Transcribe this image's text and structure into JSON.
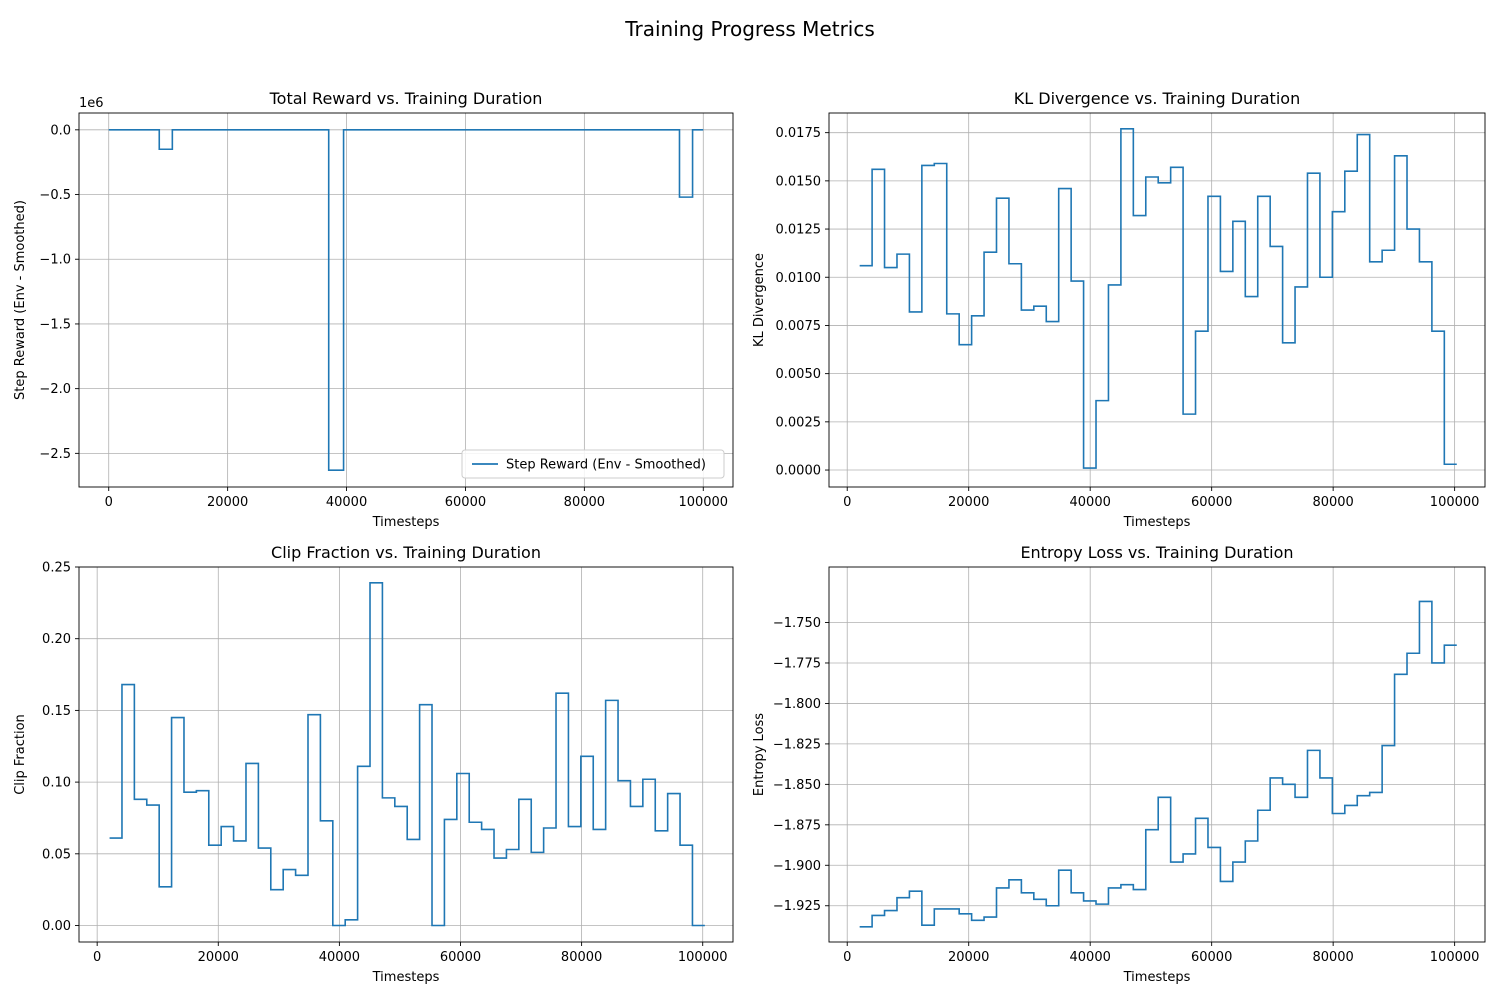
{
  "figure": {
    "title": "Training Progress Metrics"
  },
  "colors": {
    "line": "#1f77b4",
    "grid": "#b0b0b0",
    "axis": "#000000",
    "legend_border": "#cccccc"
  },
  "chart_data": [
    {
      "type": "line",
      "title": "Total Reward vs. Training Duration",
      "xlabel": "Timesteps",
      "ylabel": "Step Reward (Env - Smoothed)",
      "offset_text": "1e6",
      "xlim": [
        -5000,
        105000
      ],
      "ylim": [
        -2.76,
        0.13
      ],
      "xticks": [
        0,
        20000,
        40000,
        60000,
        80000,
        100000
      ],
      "yticks": [
        0.0,
        -0.5,
        -1.0,
        -1.5,
        -2.0,
        -2.5
      ],
      "ytick_labels": [
        "0.0",
        "−0.5",
        "−1.0",
        "−1.5",
        "−2.0",
        "−2.5"
      ],
      "grid": true,
      "legend": {
        "position": "lower-right",
        "entries": [
          "Step Reward (Env - Smoothed)"
        ]
      },
      "series": [
        {
          "name": "Step Reward (Env - Smoothed)",
          "x": [
            0,
            8500,
            8500,
            10700,
            10700,
            37000,
            37000,
            39500,
            39500,
            96000,
            96000,
            98200,
            98200,
            100000
          ],
          "y": [
            0,
            0,
            -0.15,
            -0.15,
            0,
            0,
            -2.63,
            -2.63,
            0,
            0,
            -0.52,
            -0.52,
            0,
            0
          ]
        }
      ]
    },
    {
      "type": "line",
      "title": "KL Divergence vs. Training Duration",
      "xlabel": "Timesteps",
      "ylabel": "KL Divergence",
      "xlim": [
        -3000,
        105000
      ],
      "ylim": [
        -0.00088,
        0.01852
      ],
      "xticks": [
        0,
        20000,
        40000,
        60000,
        80000,
        100000
      ],
      "yticks": [
        0.0,
        0.0025,
        0.005,
        0.0075,
        0.01,
        0.0125,
        0.015,
        0.0175
      ],
      "ytick_labels": [
        "0.0000",
        "0.0025",
        "0.0050",
        "0.0075",
        "0.0100",
        "0.0125",
        "0.0150",
        "0.0175"
      ],
      "grid": true,
      "series": [
        {
          "name": "",
          "step": true,
          "x": [
            2048,
            4096,
            6144,
            8192,
            10240,
            12288,
            14336,
            16384,
            18432,
            20480,
            22528,
            24576,
            26624,
            28672,
            30720,
            32768,
            34816,
            36864,
            38912,
            40960,
            43008,
            45056,
            47104,
            49152,
            51200,
            53248,
            55296,
            57344,
            59392,
            61440,
            63488,
            65536,
            67584,
            69632,
            71680,
            73728,
            75776,
            77824,
            79872,
            81920,
            83968,
            86016,
            88064,
            90112,
            92160,
            94208,
            96256,
            98304,
            100352
          ],
          "y": [
            0.0106,
            0.0156,
            0.0105,
            0.0112,
            0.0082,
            0.0158,
            0.0159,
            0.0081,
            0.0065,
            0.008,
            0.0113,
            0.0141,
            0.0107,
            0.0083,
            0.0085,
            0.0077,
            0.0146,
            0.0098,
            0.0001,
            0.0036,
            0.0096,
            0.0177,
            0.0132,
            0.0152,
            0.0149,
            0.0157,
            0.0029,
            0.0072,
            0.0142,
            0.0103,
            0.0129,
            0.009,
            0.0142,
            0.0116,
            0.0066,
            0.0095,
            0.0154,
            0.01,
            0.0134,
            0.0155,
            0.0174,
            0.0108,
            0.0114,
            0.0163,
            0.0125,
            0.0108,
            0.0072,
            0.0003,
            0.0003
          ]
        }
      ]
    },
    {
      "type": "line",
      "title": "Clip Fraction vs. Training Duration",
      "xlabel": "Timesteps",
      "ylabel": "Clip Fraction",
      "xlim": [
        -3000,
        105000
      ],
      "ylim": [
        -0.0115,
        0.25
      ],
      "xticks": [
        0,
        20000,
        40000,
        60000,
        80000,
        100000
      ],
      "yticks": [
        0.0,
        0.05,
        0.1,
        0.15,
        0.2,
        0.25
      ],
      "ytick_labels": [
        "0.00",
        "0.05",
        "0.10",
        "0.15",
        "0.20",
        "0.25"
      ],
      "grid": true,
      "series": [
        {
          "name": "",
          "step": true,
          "x": [
            2048,
            4096,
            6144,
            8192,
            10240,
            12288,
            14336,
            16384,
            18432,
            20480,
            22528,
            24576,
            26624,
            28672,
            30720,
            32768,
            34816,
            36864,
            38912,
            40960,
            43008,
            45056,
            47104,
            49152,
            51200,
            53248,
            55296,
            57344,
            59392,
            61440,
            63488,
            65536,
            67584,
            69632,
            71680,
            73728,
            75776,
            77824,
            79872,
            81920,
            83968,
            86016,
            88064,
            90112,
            92160,
            94208,
            96256,
            98304,
            100352
          ],
          "y": [
            0.061,
            0.168,
            0.088,
            0.084,
            0.027,
            0.145,
            0.093,
            0.094,
            0.056,
            0.069,
            0.059,
            0.113,
            0.054,
            0.025,
            0.039,
            0.035,
            0.147,
            0.073,
            0.0,
            0.004,
            0.111,
            0.239,
            0.089,
            0.083,
            0.06,
            0.154,
            0.0,
            0.074,
            0.106,
            0.072,
            0.067,
            0.047,
            0.053,
            0.088,
            0.051,
            0.068,
            0.162,
            0.069,
            0.118,
            0.067,
            0.157,
            0.101,
            0.083,
            0.102,
            0.066,
            0.092,
            0.056,
            0.0,
            0.0
          ]
        }
      ]
    },
    {
      "type": "line",
      "title": "Entropy Loss vs. Training Duration",
      "xlabel": "Timesteps",
      "ylabel": "Entropy Loss",
      "xlim": [
        -3000,
        105000
      ],
      "ylim": [
        -1.9474,
        -1.7157
      ],
      "xticks": [
        0,
        20000,
        40000,
        60000,
        80000,
        100000
      ],
      "yticks": [
        -1.925,
        -1.9,
        -1.875,
        -1.85,
        -1.825,
        -1.8,
        -1.775,
        -1.75
      ],
      "ytick_labels": [
        "−1.925",
        "−1.900",
        "−1.875",
        "−1.850",
        "−1.825",
        "−1.800",
        "−1.775",
        "−1.750"
      ],
      "grid": true,
      "series": [
        {
          "name": "",
          "step": true,
          "x": [
            2048,
            4096,
            6144,
            8192,
            10240,
            12288,
            14336,
            16384,
            18432,
            20480,
            22528,
            24576,
            26624,
            28672,
            30720,
            32768,
            34816,
            36864,
            38912,
            40960,
            43008,
            45056,
            47104,
            49152,
            51200,
            53248,
            55296,
            57344,
            59392,
            61440,
            63488,
            65536,
            67584,
            69632,
            71680,
            73728,
            75776,
            77824,
            79872,
            81920,
            83968,
            86016,
            88064,
            90112,
            92160,
            94208,
            96256,
            98304,
            100352
          ],
          "y": [
            -1.938,
            -1.931,
            -1.928,
            -1.92,
            -1.916,
            -1.937,
            -1.927,
            -1.927,
            -1.93,
            -1.934,
            -1.932,
            -1.914,
            -1.909,
            -1.917,
            -1.921,
            -1.925,
            -1.903,
            -1.917,
            -1.922,
            -1.924,
            -1.914,
            -1.912,
            -1.915,
            -1.878,
            -1.858,
            -1.898,
            -1.893,
            -1.871,
            -1.889,
            -1.91,
            -1.898,
            -1.885,
            -1.866,
            -1.846,
            -1.85,
            -1.858,
            -1.829,
            -1.846,
            -1.868,
            -1.863,
            -1.857,
            -1.855,
            -1.826,
            -1.782,
            -1.769,
            -1.737,
            -1.775,
            -1.764,
            -1.764
          ]
        }
      ]
    }
  ]
}
